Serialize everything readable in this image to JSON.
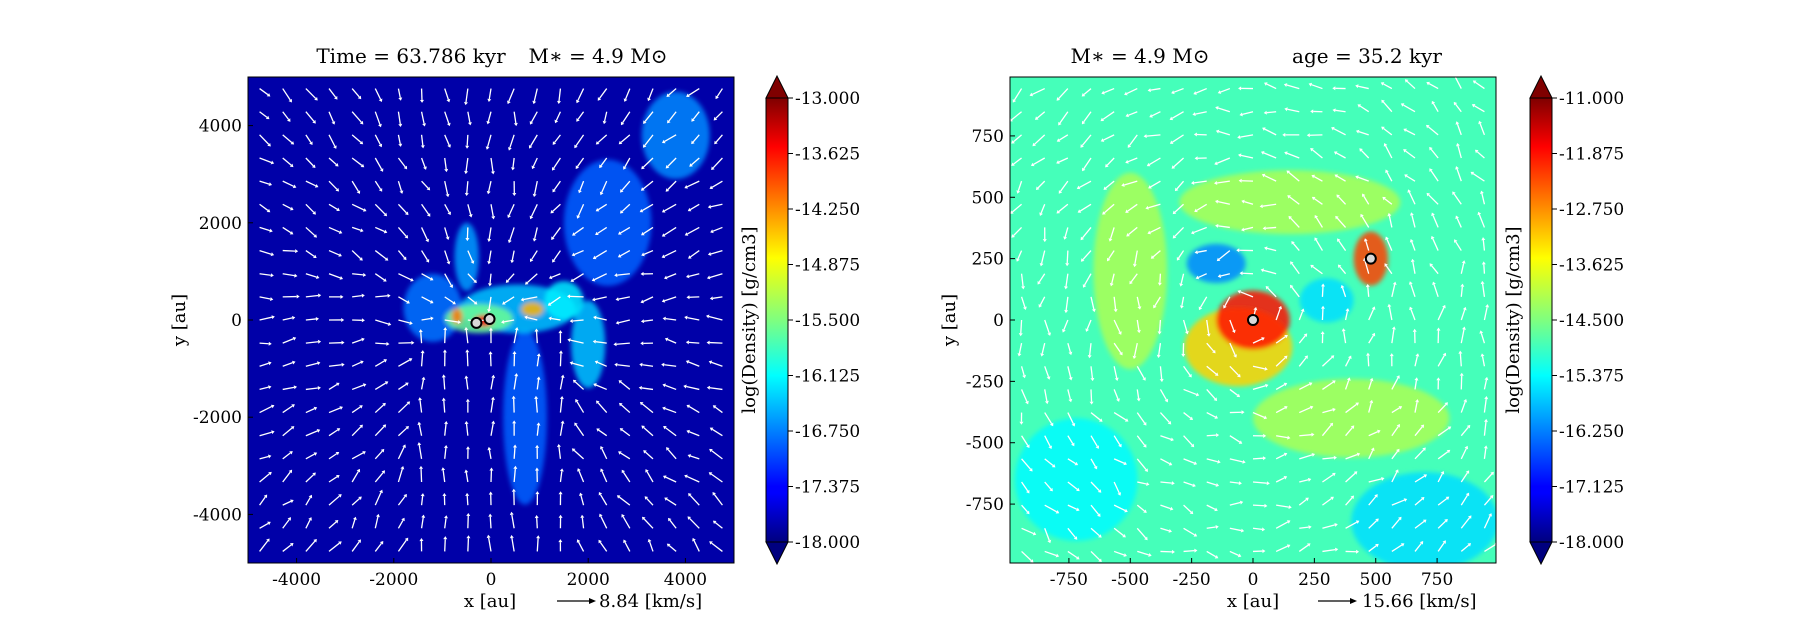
{
  "chart_data": [
    {
      "type": "heatmap",
      "title_left": "Time = 63.786 kyr",
      "title_right": "M∗ = 4.9 M⊙",
      "xlabel": "x [au]",
      "ylabel": "y [au]",
      "xlim": [
        -5000,
        5000
      ],
      "ylim": [
        -5000,
        5000
      ],
      "xticks": [
        -4000,
        -2000,
        0,
        2000,
        4000
      ],
      "yticks": [
        -4000,
        -2000,
        0,
        2000,
        4000
      ],
      "xtick_labels": [
        "-4000",
        "-2000",
        "0",
        "2000",
        "4000"
      ],
      "ytick_labels": [
        "-4000",
        "-2000",
        "0",
        "2000",
        "4000"
      ],
      "colorbar": {
        "label": "log(Density) [g/cm3]",
        "range": [
          -18.0,
          -13.0
        ],
        "ticks": [
          -13.0,
          -13.625,
          -14.25,
          -14.875,
          -15.5,
          -16.125,
          -16.75,
          -17.375,
          -18.0
        ],
        "tick_labels": [
          "-13.000",
          "-13.625",
          "-14.250",
          "-14.875",
          "-15.500",
          "-16.125",
          "-16.750",
          "-17.375",
          "-18.000"
        ],
        "colormap": "jet",
        "extend": "both"
      },
      "background_log_density": -17.8,
      "stars": [
        {
          "x": -300,
          "y": -60
        },
        {
          "x": -30,
          "y": 20
        }
      ],
      "quiver_reference": {
        "label": "8.84 [km/s]"
      },
      "features": [
        {
          "x": -250,
          "y": 30,
          "sx": 700,
          "sy": 300,
          "v": -15.6
        },
        {
          "x": 550,
          "y": 230,
          "sx": 1200,
          "sy": 500,
          "v": -16.4
        },
        {
          "x": 2000,
          "y": -500,
          "sx": 350,
          "sy": 900,
          "v": -16.4
        },
        {
          "x": 1500,
          "y": 400,
          "sx": 400,
          "sy": 400,
          "v": -16.2
        },
        {
          "x": -1200,
          "y": 250,
          "sx": 600,
          "sy": 700,
          "v": -16.8
        },
        {
          "x": 700,
          "y": -2000,
          "sx": 450,
          "sy": 1800,
          "v": -16.9
        },
        {
          "x": 2400,
          "y": 2000,
          "sx": 900,
          "sy": 1300,
          "v": -16.9
        },
        {
          "x": 3800,
          "y": 3800,
          "sx": 700,
          "sy": 900,
          "v": -16.7
        },
        {
          "x": -500,
          "y": 1300,
          "sx": 250,
          "sy": 700,
          "v": -16.6
        },
        {
          "x": -700,
          "y": 80,
          "sx": 110,
          "sy": 160,
          "v": -14.2
        },
        {
          "x": -150,
          "y": -20,
          "sx": 200,
          "sy": 120,
          "v": -13.6
        },
        {
          "x": 850,
          "y": 220,
          "sx": 230,
          "sy": 150,
          "v": -14.5
        }
      ]
    },
    {
      "type": "heatmap",
      "title_left": "M∗ = 4.9 M⊙",
      "title_right": "age = 35.2 kyr",
      "xlabel": "x [au]",
      "ylabel": "y [au]",
      "xlim": [
        -990,
        990
      ],
      "ylim": [
        -990,
        990
      ],
      "xticks": [
        -750,
        -500,
        -250,
        0,
        250,
        500,
        750
      ],
      "yticks": [
        -750,
        -500,
        -250,
        0,
        250,
        500,
        750
      ],
      "xtick_labels": [
        "-750",
        "-500",
        "-250",
        "0",
        "250",
        "500",
        "750"
      ],
      "ytick_labels": [
        "-750",
        "-500",
        "-250",
        "0",
        "250",
        "500",
        "750"
      ],
      "colorbar": {
        "label": "log(Density) [g/cm3]",
        "range": [
          -18.0,
          -11.0
        ],
        "ticks": [
          -11.0,
          -11.875,
          -12.75,
          -13.625,
          -14.5,
          -15.375,
          -16.25,
          -17.125,
          -18.0
        ],
        "tick_labels": [
          "-11.000",
          "-11.875",
          "-12.750",
          "-13.625",
          "-14.500",
          "-15.375",
          "-16.250",
          "-17.125",
          "-18.000"
        ],
        "colormap": "jet",
        "extend": "both"
      },
      "background_log_density": -14.9,
      "stars": [
        {
          "x": 0,
          "y": 0
        },
        {
          "x": 480,
          "y": 250
        }
      ],
      "quiver_reference": {
        "label": "15.66 [km/s]"
      },
      "features": [
        {
          "x": 0,
          "y": 0,
          "sx": 150,
          "sy": 120,
          "v": -12.0
        },
        {
          "x": -60,
          "y": -110,
          "sx": 220,
          "sy": 160,
          "v": -13.3
        },
        {
          "x": 480,
          "y": 250,
          "sx": 70,
          "sy": 110,
          "v": -12.3
        },
        {
          "x": 150,
          "y": 480,
          "sx": 450,
          "sy": 130,
          "v": -14.2
        },
        {
          "x": -500,
          "y": 200,
          "sx": 150,
          "sy": 400,
          "v": -14.2
        },
        {
          "x": 400,
          "y": -400,
          "sx": 400,
          "sy": 160,
          "v": -14.2
        },
        {
          "x": -150,
          "y": 230,
          "sx": 120,
          "sy": 80,
          "v": -16.2
        },
        {
          "x": 300,
          "y": 80,
          "sx": 110,
          "sy": 90,
          "v": -15.6
        },
        {
          "x": -720,
          "y": -650,
          "sx": 250,
          "sy": 250,
          "v": -15.4
        },
        {
          "x": 700,
          "y": -820,
          "sx": 300,
          "sy": 200,
          "v": -15.6
        }
      ]
    }
  ]
}
